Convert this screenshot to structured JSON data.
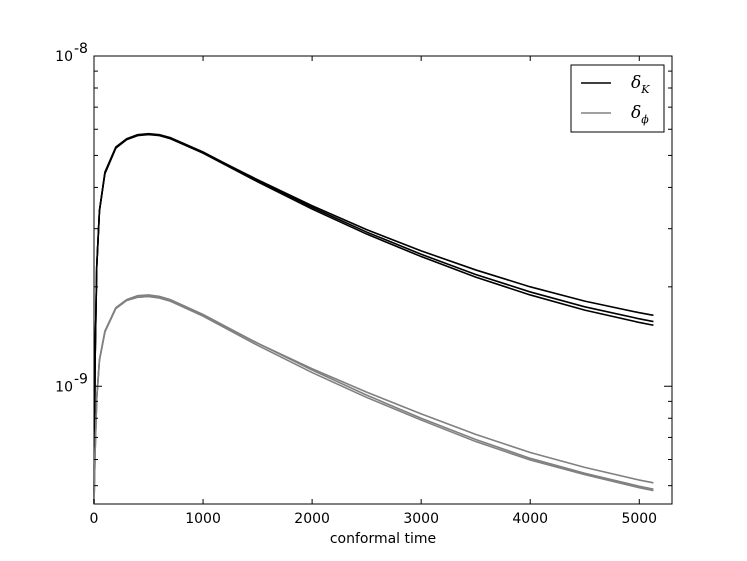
{
  "chart_data": {
    "type": "line",
    "xlabel": "conformal time",
    "ylabel": "",
    "xlim": [
      0,
      5300
    ],
    "ylim": [
      4.4e-10,
      1e-08
    ],
    "yscale": "log",
    "grid": false,
    "legend_position": "top-right",
    "x_ticks": [
      {
        "value": 0,
        "label": "0"
      },
      {
        "value": 1000,
        "label": "1000"
      },
      {
        "value": 2000,
        "label": "2000"
      },
      {
        "value": 3000,
        "label": "3000"
      },
      {
        "value": 4000,
        "label": "4000"
      },
      {
        "value": 5000,
        "label": "5000"
      }
    ],
    "y_ticks": [
      {
        "value": 1e-08,
        "base": "10",
        "exp": "-8"
      },
      {
        "value": 1e-09,
        "base": "10",
        "exp": "-9"
      }
    ],
    "legend": [
      {
        "symbol": "δ",
        "subscript": "K",
        "color": "#000000"
      },
      {
        "symbol": "δ",
        "subscript": "ϕ",
        "color": "#808080"
      }
    ],
    "x": [
      0,
      10,
      25,
      50,
      100,
      200,
      300,
      400,
      500,
      600,
      700,
      1000,
      1500,
      2000,
      2500,
      3000,
      3500,
      4000,
      4500,
      5000,
      5130
    ],
    "series": [
      {
        "group": 0,
        "color": "#000000",
        "values": [
          4.4e-10,
          1.2e-09,
          2.3e-09,
          3.4e-09,
          4.45e-09,
          5.3e-09,
          5.62e-09,
          5.78e-09,
          5.82e-09,
          5.78e-09,
          5.66e-09,
          5.12e-09,
          4.2e-09,
          3.48e-09,
          2.93e-09,
          2.51e-09,
          2.18e-09,
          1.93e-09,
          1.74e-09,
          1.6e-09,
          1.57e-09
        ]
      },
      {
        "group": 0,
        "color": "#000000",
        "values": [
          4.4e-10,
          1.2e-09,
          2.3e-09,
          3.4e-09,
          4.42e-09,
          5.27e-09,
          5.6e-09,
          5.75e-09,
          5.8e-09,
          5.75e-09,
          5.62e-09,
          5.08e-09,
          4.16e-09,
          3.44e-09,
          2.89e-09,
          2.47e-09,
          2.14e-09,
          1.89e-09,
          1.7e-09,
          1.56e-09,
          1.53e-09
        ]
      },
      {
        "group": 0,
        "color": "#000000",
        "values": [
          4.4e-10,
          1.2e-09,
          2.3e-09,
          3.4e-09,
          4.4e-09,
          5.26e-09,
          5.58e-09,
          5.74e-09,
          5.78e-09,
          5.74e-09,
          5.62e-09,
          5.1e-09,
          4.22e-09,
          3.52e-09,
          2.98e-09,
          2.57e-09,
          2.25e-09,
          2e-09,
          1.81e-09,
          1.67e-09,
          1.64e-09
        ]
      },
      {
        "group": 1,
        "color": "#808080",
        "values": [
          4.4e-10,
          6.3e-10,
          9.2e-10,
          1.2e-09,
          1.47e-09,
          1.73e-09,
          1.83e-09,
          1.88e-09,
          1.89e-09,
          1.87e-09,
          1.83e-09,
          1.65e-09,
          1.35e-09,
          1.12e-09,
          9.4e-10,
          8e-10,
          6.9e-10,
          6.05e-10,
          5.45e-10,
          4.98e-10,
          4.88e-10
        ]
      },
      {
        "group": 1,
        "color": "#808080",
        "values": [
          4.4e-10,
          6.3e-10,
          9.2e-10,
          1.2e-09,
          1.46e-09,
          1.72e-09,
          1.82e-09,
          1.86e-09,
          1.87e-09,
          1.85e-09,
          1.81e-09,
          1.63e-09,
          1.33e-09,
          1.1e-09,
          9.25e-10,
          7.9e-10,
          6.8e-10,
          5.98e-10,
          5.4e-10,
          4.93e-10,
          4.83e-10
        ]
      },
      {
        "group": 1,
        "color": "#808080",
        "values": [
          4.4e-10,
          6.3e-10,
          9.2e-10,
          1.2e-09,
          1.46e-09,
          1.72e-09,
          1.82e-09,
          1.86e-09,
          1.87e-09,
          1.85e-09,
          1.81e-09,
          1.64e-09,
          1.35e-09,
          1.13e-09,
          9.6e-10,
          8.25e-10,
          7.15e-10,
          6.3e-10,
          5.68e-10,
          5.2e-10,
          5.1e-10
        ]
      }
    ]
  }
}
